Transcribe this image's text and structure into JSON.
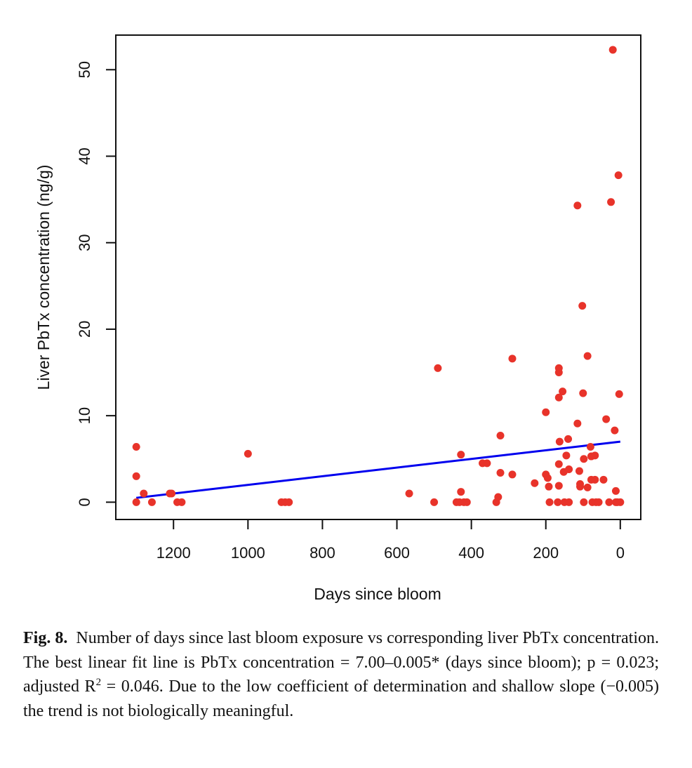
{
  "chart_data": {
    "type": "scatter",
    "title": "",
    "xlabel": "Days since bloom",
    "ylabel": "Liver PbTx concentration (ng/g)",
    "xlim": [
      1355,
      -55
    ],
    "ylim": [
      -2,
      54
    ],
    "x_reversed": true,
    "x_ticks": [
      1200,
      1000,
      800,
      600,
      400,
      200,
      0
    ],
    "x_tick_labels": [
      "1200",
      "1000",
      "800",
      "600",
      "400",
      "200",
      "0"
    ],
    "y_ticks": [
      0,
      10,
      20,
      30,
      40,
      50
    ],
    "y_tick_labels": [
      "0",
      "10",
      "20",
      "30",
      "40",
      "50"
    ],
    "grid": false,
    "legend": "none",
    "colors": {
      "points": "#e8332a",
      "fit_line": "#0000ee",
      "axes": "#111111"
    },
    "series": [
      {
        "values": [
          [
            1300,
            6.4
          ],
          [
            1300,
            3.0
          ],
          [
            1300,
            0.0
          ],
          [
            1280,
            1.0
          ],
          [
            1258,
            0.0
          ],
          [
            1210,
            1.0
          ],
          [
            1205,
            1.0
          ],
          [
            1190,
            0.0
          ],
          [
            1178,
            0.0
          ],
          [
            1000,
            5.6
          ],
          [
            910,
            0.0
          ],
          [
            900,
            0.0
          ],
          [
            890,
            0.0
          ],
          [
            567,
            1.0
          ],
          [
            500,
            0.0
          ],
          [
            490,
            15.5
          ],
          [
            440,
            0.0
          ],
          [
            432,
            0.0
          ],
          [
            428,
            5.5
          ],
          [
            428,
            1.2
          ],
          [
            420,
            0.0
          ],
          [
            412,
            0.0
          ],
          [
            370,
            4.5
          ],
          [
            358,
            4.5
          ],
          [
            333,
            0.0
          ],
          [
            328,
            0.6
          ],
          [
            322,
            7.7
          ],
          [
            322,
            3.4
          ],
          [
            290,
            16.6
          ],
          [
            290,
            3.2
          ],
          [
            230,
            2.2
          ],
          [
            200,
            10.4
          ],
          [
            200,
            3.2
          ],
          [
            195,
            2.8
          ],
          [
            192,
            1.8
          ],
          [
            190,
            0.0
          ],
          [
            165,
            15.5
          ],
          [
            165,
            15.0
          ],
          [
            165,
            12.1
          ],
          [
            165,
            4.4
          ],
          [
            165,
            1.9
          ],
          [
            163,
            7.0
          ],
          [
            168,
            0.0
          ],
          [
            155,
            12.8
          ],
          [
            152,
            3.5
          ],
          [
            150,
            0.0
          ],
          [
            145,
            5.4
          ],
          [
            140,
            7.3
          ],
          [
            138,
            3.8
          ],
          [
            138,
            0.0
          ],
          [
            115,
            34.3
          ],
          [
            115,
            9.1
          ],
          [
            110,
            3.6
          ],
          [
            108,
            2.1
          ],
          [
            108,
            1.8
          ],
          [
            102,
            22.7
          ],
          [
            100,
            12.6
          ],
          [
            98,
            5.0
          ],
          [
            98,
            0.0
          ],
          [
            88,
            16.9
          ],
          [
            88,
            1.7
          ],
          [
            80,
            6.4
          ],
          [
            78,
            5.3
          ],
          [
            78,
            2.6
          ],
          [
            75,
            0.0
          ],
          [
            68,
            5.4
          ],
          [
            68,
            2.6
          ],
          [
            65,
            0.0
          ],
          [
            58,
            0.0
          ],
          [
            45,
            2.6
          ],
          [
            38,
            9.6
          ],
          [
            30,
            0.0
          ],
          [
            25,
            34.7
          ],
          [
            20,
            52.3
          ],
          [
            15,
            8.3
          ],
          [
            12,
            1.3
          ],
          [
            12,
            0.0
          ],
          [
            5,
            37.8
          ],
          [
            3,
            12.5
          ],
          [
            0,
            0.0
          ],
          [
            8,
            0.0
          ]
        ]
      }
    ],
    "fit_line": {
      "intercept": 7.0,
      "slope": -0.005,
      "x_range": [
        1300,
        0
      ]
    }
  },
  "caption": {
    "label": "Fig. 8.",
    "text_1": "Number of days since last bloom exposure vs corresponding liver PbTx concentration. The best linear fit line is PbTx concentration = 7.00–0.005* (days since bloom); p = 0.023; adjusted R",
    "superscript": "2",
    "text_2": " = 0.046. Due to the low coefficient of determination and shallow slope (−0.005) the trend is not biologically meaningful."
  }
}
